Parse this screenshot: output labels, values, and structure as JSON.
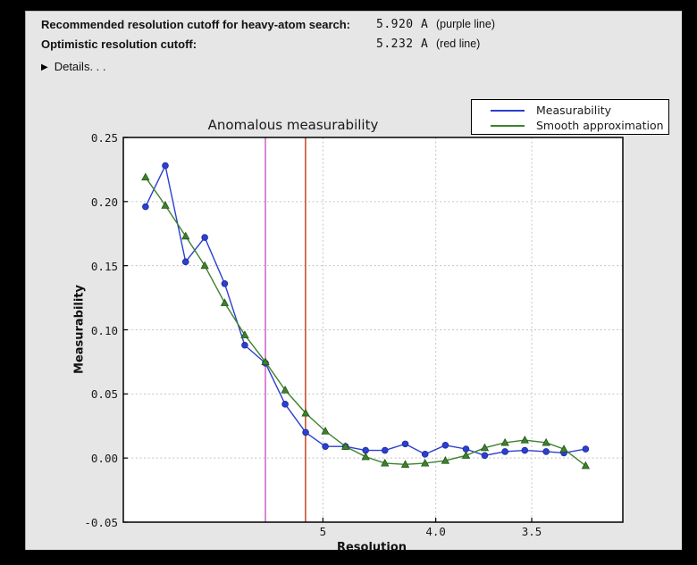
{
  "header": {
    "rows": [
      {
        "label": "Recommended resolution cutoff for heavy-atom search:",
        "value": "5.920 A",
        "note": "(purple line)"
      },
      {
        "label": "Optimistic resolution cutoff:",
        "value": "5.232 A",
        "note": "(red line)"
      }
    ],
    "details_label": "Details. . .",
    "disclosure_icon": "right-triangle",
    "disclosure_glyph": "▶"
  },
  "colors": {
    "measurability_line": "#2b3fd0",
    "smooth_line": "#3c822c",
    "purple_vline": "#c857c8",
    "red_vline": "#bf3a10",
    "grid": "#c4c4c4",
    "plot_bg": "#ffffff",
    "window_bg": "#e6e6e6"
  },
  "chart_data": {
    "type": "line",
    "title": "Anomalous measurability",
    "xlabel": "Resolution",
    "ylabel": "Measurability",
    "x_scale": "inverse_d_squared",
    "x_units": "Angstrom",
    "xlim_s": [
      0.0002,
      0.0998
    ],
    "ylim": [
      -0.05,
      0.25
    ],
    "grid": true,
    "x_ticks": [
      {
        "label": "5",
        "d": 5.0
      },
      {
        "label": "4.0",
        "d": 4.0
      },
      {
        "label": "3.5",
        "d": 3.5
      }
    ],
    "y_ticks": [
      {
        "label": "0.25",
        "v": 0.25
      },
      {
        "label": "0.20",
        "v": 0.2
      },
      {
        "label": "0.15",
        "v": 0.15
      },
      {
        "label": "0.10",
        "v": 0.1
      },
      {
        "label": "0.05",
        "v": 0.05
      },
      {
        "label": "0.00",
        "v": 0.0
      },
      {
        "label": "-0.05",
        "v": -0.05
      }
    ],
    "resolution_shells_d": [
      14.7,
      10.8,
      8.9,
      7.8,
      7.0,
      6.4,
      5.92,
      5.55,
      5.23,
      4.97,
      4.74,
      4.54,
      4.37,
      4.21,
      4.07,
      3.94,
      3.82,
      3.72,
      3.62,
      3.53,
      3.44,
      3.37,
      3.29
    ],
    "series": [
      {
        "name": "Measurability",
        "marker": "circle",
        "color": "#2b3fd0",
        "values": [
          0.196,
          0.228,
          0.153,
          0.172,
          0.136,
          0.088,
          0.074,
          0.042,
          0.02,
          0.009,
          0.009,
          0.006,
          0.006,
          0.011,
          0.003,
          0.01,
          0.007,
          0.002,
          0.005,
          0.006,
          0.005,
          0.004,
          0.007
        ]
      },
      {
        "name": "Smooth approximation",
        "marker": "triangle",
        "color": "#3c822c",
        "values": [
          0.219,
          0.197,
          0.173,
          0.15,
          0.121,
          0.096,
          0.075,
          0.053,
          0.035,
          0.021,
          0.009,
          0.001,
          -0.004,
          -0.005,
          -0.004,
          -0.002,
          0.002,
          0.008,
          0.012,
          0.014,
          0.012,
          0.007,
          -0.006
        ]
      }
    ],
    "vlines": [
      {
        "d": 5.92,
        "color": "#c857c8",
        "name": "purple line"
      },
      {
        "d": 5.232,
        "color": "#bf3a10",
        "name": "red line"
      }
    ],
    "legend": {
      "position": "top-right",
      "entries": [
        "Measurability",
        "Smooth approximation"
      ]
    }
  }
}
